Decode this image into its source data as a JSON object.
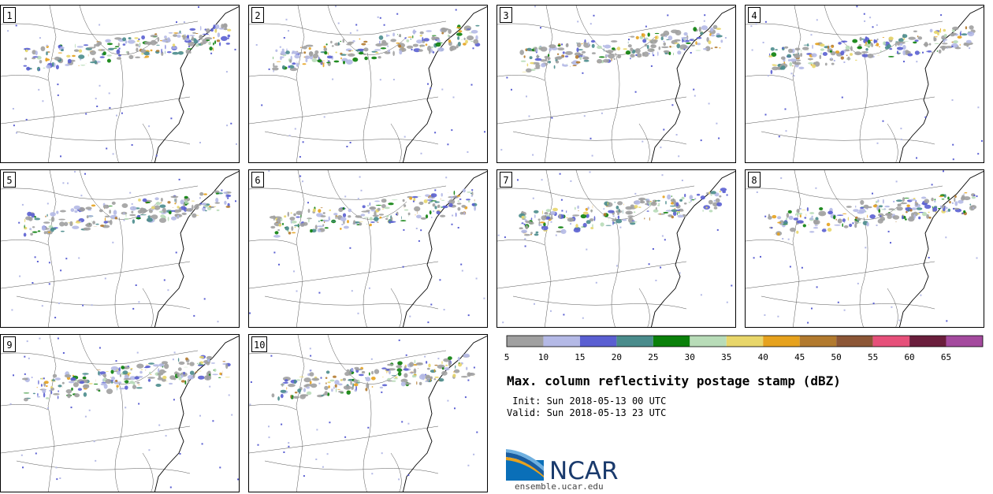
{
  "panels": [
    {
      "label": "1"
    },
    {
      "label": "2"
    },
    {
      "label": "3"
    },
    {
      "label": "4"
    },
    {
      "label": "5"
    },
    {
      "label": "6"
    },
    {
      "label": "7"
    },
    {
      "label": "8"
    },
    {
      "label": "9"
    },
    {
      "label": "10"
    }
  ],
  "colorbar": {
    "ticks": [
      "5",
      "10",
      "15",
      "20",
      "25",
      "30",
      "35",
      "40",
      "45",
      "50",
      "55",
      "60",
      "65"
    ],
    "colors": [
      "#a0a0a0",
      "#b4b9e6",
      "#5a5fd2",
      "#4a8c8c",
      "#0a800a",
      "#b8dcb8",
      "#e8d66a",
      "#e6a21e",
      "#b27a2e",
      "#8c5636",
      "#e6507a",
      "#6a1e3c",
      "#a44a9e"
    ]
  },
  "title": "Max. column reflectivity postage stamp (dBZ)",
  "init": " Init: Sun 2018-05-13 00 UTC",
  "valid": "Valid: Sun 2018-05-13 23 UTC",
  "logo": {
    "text": "NCAR",
    "url": "ensemble.ucar.edu"
  }
}
